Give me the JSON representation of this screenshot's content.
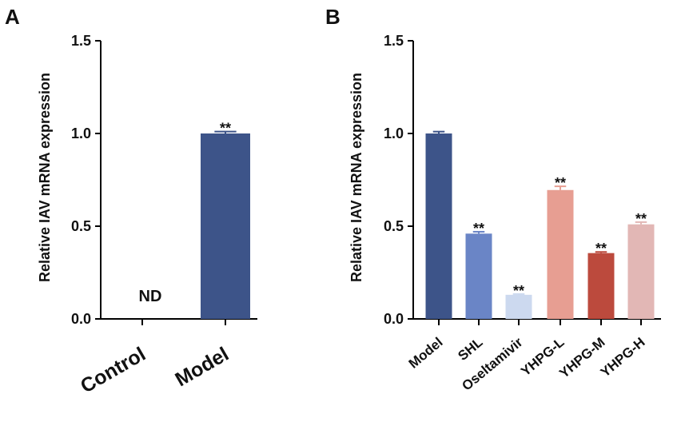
{
  "chart_data": [
    {
      "panel": "A",
      "type": "bar",
      "ylabel": "Relative IAV mRNA expression",
      "ylim": [
        0,
        1.5
      ],
      "yticks": [
        "0.0",
        "0.5",
        "1.0",
        "1.5"
      ],
      "categories": [
        "Control",
        "Model"
      ],
      "values": [
        0,
        1.0
      ],
      "errors": [
        0,
        0.01
      ],
      "labels": [
        "ND",
        "**"
      ],
      "colors": [
        "#ffffff",
        "#3d5489"
      ]
    },
    {
      "panel": "B",
      "type": "bar",
      "ylabel": "Relative IAV mRNA expression",
      "ylim": [
        0,
        1.5
      ],
      "yticks": [
        "0.0",
        "0.5",
        "1.0",
        "1.5"
      ],
      "categories": [
        "Model",
        "SHL",
        "Oseltamivir",
        "YHPG-L",
        "YHPG-M",
        "YHPG-H"
      ],
      "values": [
        1.0,
        0.46,
        0.13,
        0.695,
        0.355,
        0.51
      ],
      "errors": [
        0.01,
        0.01,
        0.004,
        0.02,
        0.006,
        0.012
      ],
      "labels": [
        "",
        "**",
        "**",
        "**",
        "**",
        "**"
      ],
      "colors": [
        "#3d5489",
        "#6a85c6",
        "#ccd9ef",
        "#e79e92",
        "#bc4a3d",
        "#e2b7b5"
      ]
    }
  ]
}
